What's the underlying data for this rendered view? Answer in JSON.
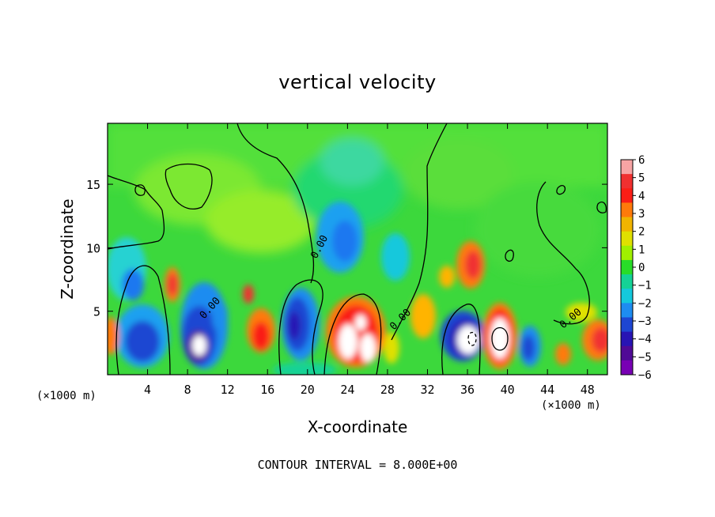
{
  "chart_data": {
    "type": "heatmap",
    "title": "vertical velocity",
    "xlabel": "X-coordinate",
    "ylabel": "Z-coordinate",
    "x_unit_label": "(×1000 m)",
    "x_unit_label_right": "(×1000 m)",
    "xlim": [
      0,
      50
    ],
    "ylim": [
      0,
      19.8
    ],
    "x_ticks": [
      4,
      8,
      12,
      16,
      20,
      24,
      28,
      32,
      36,
      40,
      44,
      48
    ],
    "y_ticks": [
      5,
      10,
      15
    ],
    "contour_level_label": "0.00",
    "footnote": "CONTOUR INTERVAL = 8.000E+00",
    "colorbar": {
      "min": -6,
      "max": 6,
      "tick_labels": [
        "6",
        "5",
        "4",
        "3",
        "2",
        "1",
        "0",
        "−1",
        "−2",
        "−3",
        "−4",
        "−5",
        "−6"
      ],
      "colors": [
        "#f7a4a4",
        "#f03030",
        "#fa1e16",
        "#ff7a0a",
        "#f0b400",
        "#e0e000",
        "#a0f000",
        "#28dc28",
        "#14d296",
        "#14c8dc",
        "#1e8cf0",
        "#1e46d2",
        "#2814b4",
        "#500a96",
        "#7800b4"
      ]
    },
    "features": [
      {
        "kind": "updraft",
        "x": 9.5,
        "z": 2.2,
        "peak": 6
      },
      {
        "kind": "downdraft",
        "x": 8.8,
        "z": 3.5,
        "peak": -5
      },
      {
        "kind": "updraft",
        "x": 6.5,
        "z": 7.0,
        "peak": 4
      },
      {
        "kind": "downdraft",
        "x": 2.5,
        "z": 2.5,
        "peak": -4
      },
      {
        "kind": "downdraft",
        "x": 2.3,
        "z": 7.0,
        "peak": -3
      },
      {
        "kind": "updraft",
        "x": 15.5,
        "z": 3.0,
        "peak": 4
      },
      {
        "kind": "downdraft",
        "x": 19.0,
        "z": 4.0,
        "peak": -5
      },
      {
        "kind": "updraft",
        "x": 24.5,
        "z": 3.0,
        "peak": 6
      },
      {
        "kind": "downdraft",
        "x": 24.0,
        "z": 10.0,
        "peak": -3
      },
      {
        "kind": "updraft",
        "x": 36.0,
        "z": 8.0,
        "peak": 3
      },
      {
        "kind": "downdraft",
        "x": 35.5,
        "z": 3.0,
        "peak": -5
      },
      {
        "kind": "updraft",
        "x": 39.0,
        "z": 2.7,
        "peak": 6
      },
      {
        "kind": "downdraft",
        "x": 42.0,
        "z": 2.5,
        "peak": -4
      },
      {
        "kind": "updraft",
        "x": 45.0,
        "z": 1.8,
        "peak": 3
      },
      {
        "kind": "updraft",
        "x": 49.0,
        "z": 2.7,
        "peak": 5
      }
    ]
  }
}
